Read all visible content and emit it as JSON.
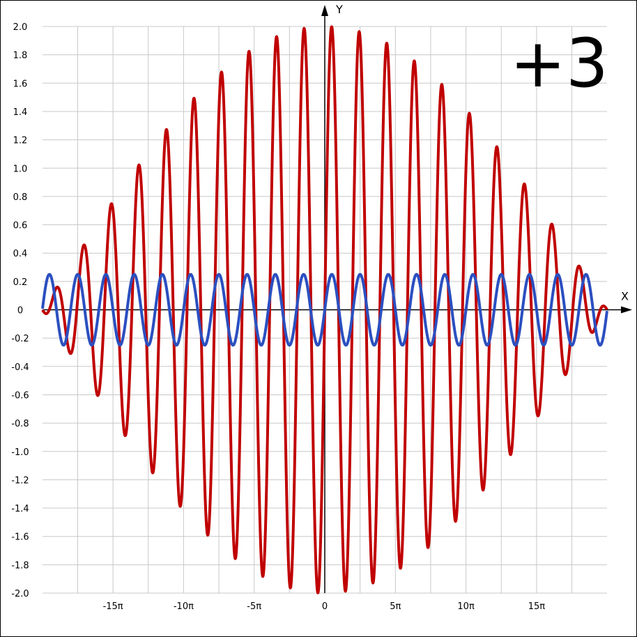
{
  "chart_data": {
    "type": "line",
    "x_axis_label": "X",
    "y_axis_label": "Y",
    "xlim": [
      -62.8,
      62.8
    ],
    "ylim": [
      -2.0,
      2.0
    ],
    "grid": true,
    "x_ticks": [
      {
        "value": -47.1239,
        "label": "-15π"
      },
      {
        "value": -31.4159,
        "label": "-10π"
      },
      {
        "value": -15.708,
        "label": "-5π"
      },
      {
        "value": 0,
        "label": "0"
      },
      {
        "value": 15.708,
        "label": "5π"
      },
      {
        "value": 31.4159,
        "label": "10π"
      },
      {
        "value": 47.1239,
        "label": "15π"
      }
    ],
    "y_ticks": [
      {
        "value": 2.0,
        "label": "2.0"
      },
      {
        "value": 1.8,
        "label": "1.8"
      },
      {
        "value": 1.6,
        "label": "1.6"
      },
      {
        "value": 1.4,
        "label": "1.4"
      },
      {
        "value": 1.2,
        "label": "1.2"
      },
      {
        "value": 1.0,
        "label": "1.0"
      },
      {
        "value": 0.8,
        "label": "0.8"
      },
      {
        "value": 0.6,
        "label": "0.6"
      },
      {
        "value": 0.4,
        "label": "0.4"
      },
      {
        "value": 0.2,
        "label": "0.2"
      },
      {
        "value": 0,
        "label": "0"
      },
      {
        "value": -0.2,
        "label": "-0.2"
      },
      {
        "value": -0.4,
        "label": "-0.4"
      },
      {
        "value": -0.6,
        "label": "-0.6"
      },
      {
        "value": -0.8,
        "label": "-0.8"
      },
      {
        "value": -1.0,
        "label": "-1.0"
      },
      {
        "value": -1.2,
        "label": "-1.2"
      },
      {
        "value": -1.4,
        "label": "-1.4"
      },
      {
        "value": -1.6,
        "label": "-1.6"
      },
      {
        "value": -1.8,
        "label": "-1.8"
      },
      {
        "value": -2.0,
        "label": "-2.0"
      }
    ],
    "series": [
      {
        "color": "#c00000",
        "formula": "y = sin(x) + sin(1.05·x)",
        "terms": [
          {
            "amplitude": 1,
            "frequency": 1
          },
          {
            "amplitude": 1,
            "frequency": 1.05
          }
        ]
      },
      {
        "color": "#2b4fc0",
        "formula": "y = 0.25·sin(x)",
        "terms": [
          {
            "amplitude": 0.25,
            "frequency": 1
          }
        ]
      }
    ],
    "badge": "+3"
  }
}
